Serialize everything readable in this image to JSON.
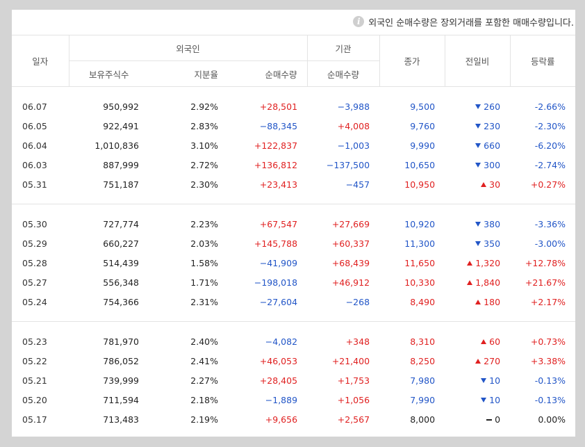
{
  "notice": {
    "text": "외국인 순매수량은 장외거래를 포함한 매매수량입니다.",
    "icon": "info-icon"
  },
  "headers": {
    "date": "일자",
    "foreign": "외국인",
    "institution": "기관",
    "holdings": "보유주식수",
    "ratio": "지분율",
    "foreign_net": "순매수량",
    "inst_net": "순매수량",
    "close": "종가",
    "change": "전일비",
    "rate": "등락률"
  },
  "colors": {
    "up": "#e02020",
    "down": "#2155c7",
    "flat": "#222222"
  },
  "groups": [
    [
      {
        "date": "06.07",
        "holdings": "950,992",
        "ratio": "2.92%",
        "fnet": "+28,501",
        "inet": "−3,988",
        "close": "9,500",
        "dir": "down",
        "change": "260",
        "rate": "-2.66%"
      },
      {
        "date": "06.05",
        "holdings": "922,491",
        "ratio": "2.83%",
        "fnet": "−88,345",
        "inet": "+4,008",
        "close": "9,760",
        "dir": "down",
        "change": "230",
        "rate": "-2.30%"
      },
      {
        "date": "06.04",
        "holdings": "1,010,836",
        "ratio": "3.10%",
        "fnet": "+122,837",
        "inet": "−1,003",
        "close": "9,990",
        "dir": "down",
        "change": "660",
        "rate": "-6.20%"
      },
      {
        "date": "06.03",
        "holdings": "887,999",
        "ratio": "2.72%",
        "fnet": "+136,812",
        "inet": "−137,500",
        "close": "10,650",
        "dir": "down",
        "change": "300",
        "rate": "-2.74%"
      },
      {
        "date": "05.31",
        "holdings": "751,187",
        "ratio": "2.30%",
        "fnet": "+23,413",
        "inet": "−457",
        "close": "10,950",
        "dir": "up",
        "change": "30",
        "rate": "+0.27%"
      }
    ],
    [
      {
        "date": "05.30",
        "holdings": "727,774",
        "ratio": "2.23%",
        "fnet": "+67,547",
        "inet": "+27,669",
        "close": "10,920",
        "dir": "down",
        "change": "380",
        "rate": "-3.36%"
      },
      {
        "date": "05.29",
        "holdings": "660,227",
        "ratio": "2.03%",
        "fnet": "+145,788",
        "inet": "+60,337",
        "close": "11,300",
        "dir": "down",
        "change": "350",
        "rate": "-3.00%"
      },
      {
        "date": "05.28",
        "holdings": "514,439",
        "ratio": "1.58%",
        "fnet": "−41,909",
        "inet": "+68,439",
        "close": "11,650",
        "dir": "up",
        "change": "1,320",
        "rate": "+12.78%"
      },
      {
        "date": "05.27",
        "holdings": "556,348",
        "ratio": "1.71%",
        "fnet": "−198,018",
        "inet": "+46,912",
        "close": "10,330",
        "dir": "up",
        "change": "1,840",
        "rate": "+21.67%"
      },
      {
        "date": "05.24",
        "holdings": "754,366",
        "ratio": "2.31%",
        "fnet": "−27,604",
        "inet": "−268",
        "close": "8,490",
        "dir": "up",
        "change": "180",
        "rate": "+2.17%"
      }
    ],
    [
      {
        "date": "05.23",
        "holdings": "781,970",
        "ratio": "2.40%",
        "fnet": "−4,082",
        "inet": "+348",
        "close": "8,310",
        "dir": "up",
        "change": "60",
        "rate": "+0.73%"
      },
      {
        "date": "05.22",
        "holdings": "786,052",
        "ratio": "2.41%",
        "fnet": "+46,053",
        "inet": "+21,400",
        "close": "8,250",
        "dir": "up",
        "change": "270",
        "rate": "+3.38%"
      },
      {
        "date": "05.21",
        "holdings": "739,999",
        "ratio": "2.27%",
        "fnet": "+28,405",
        "inet": "+1,753",
        "close": "7,980",
        "dir": "down",
        "change": "10",
        "rate": "-0.13%"
      },
      {
        "date": "05.20",
        "holdings": "711,594",
        "ratio": "2.18%",
        "fnet": "−1,889",
        "inet": "+1,056",
        "close": "7,990",
        "dir": "down",
        "change": "10",
        "rate": "-0.13%"
      },
      {
        "date": "05.17",
        "holdings": "713,483",
        "ratio": "2.19%",
        "fnet": "+9,656",
        "inet": "+2,567",
        "close": "8,000",
        "dir": "flat",
        "change": "0",
        "rate": "0.00%"
      }
    ]
  ]
}
